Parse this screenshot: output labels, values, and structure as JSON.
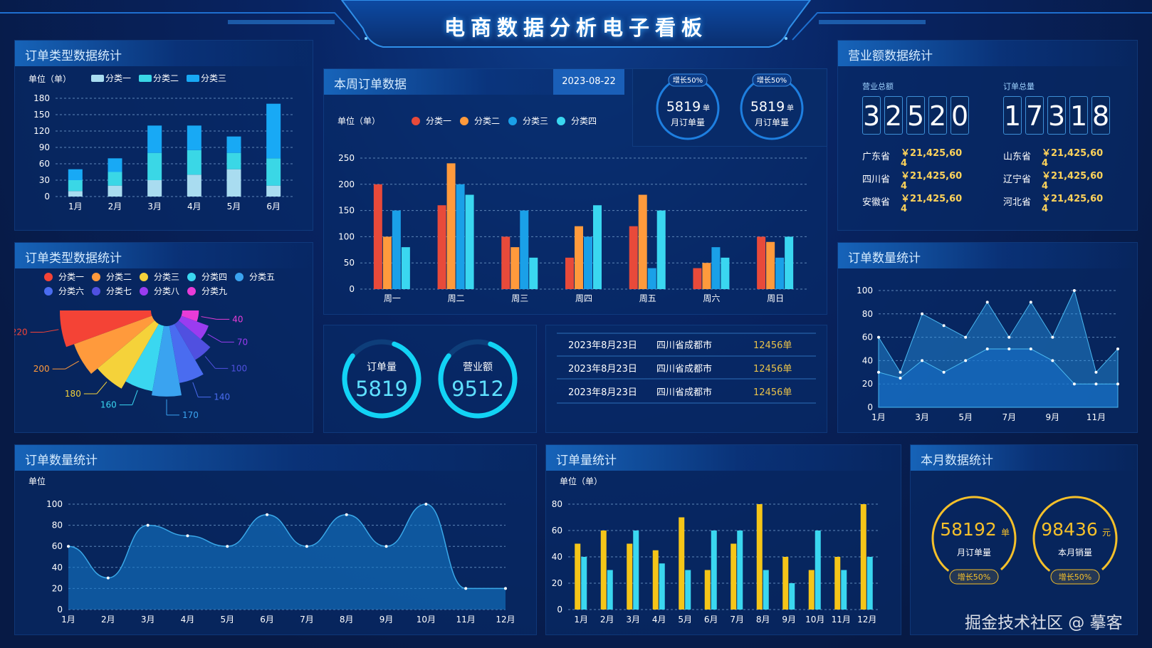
{
  "title": "电商数据分析电子看板",
  "watermark": "掘金技术社区 @ 摹客",
  "panel1": {
    "title": "订单类型数据统计",
    "unit": "单位（单）",
    "legend": [
      "分类一",
      "分类二",
      "分类三"
    ],
    "legend_colors": [
      "#a9dcf0",
      "#3ad7e6",
      "#18a9f5"
    ]
  },
  "panel2": {
    "title": "订单类型数据统计",
    "legend": [
      "分类一",
      "分类二",
      "分类三",
      "分类四",
      "分类五",
      "分类六",
      "分类七",
      "分类八",
      "分类九"
    ],
    "legend_colors": [
      "#f44336",
      "#ff9a3c",
      "#f5d23a",
      "#3ad7f0",
      "#3aa3f0",
      "#4a6cf0",
      "#5050e0",
      "#9a3cf0",
      "#e83cd7"
    ]
  },
  "panel3": {
    "title": "本周订单数据",
    "date": "2023-08-22",
    "unit": "单位（单）",
    "legend": [
      "分类一",
      "分类二",
      "分类三",
      "分类四"
    ],
    "legend_colors": [
      "#e84a3a",
      "#ff9a3c",
      "#1aa0e8",
      "#3ad7f0"
    ]
  },
  "badges": [
    {
      "tag": "增长50%",
      "value": "5819",
      "unit": "单",
      "label": "月订单量"
    },
    {
      "tag": "增长50%",
      "value": "5819",
      "unit": "单",
      "label": "月订单量"
    }
  ],
  "rings": [
    {
      "label": "订单量",
      "value": "5819"
    },
    {
      "label": "营业额",
      "value": "9512"
    }
  ],
  "table_rows": [
    {
      "date": "2023年8月23日",
      "city": "四川省成都市",
      "count": "12456单"
    },
    {
      "date": "2023年8月23日",
      "city": "四川省成都市",
      "count": "12456单"
    },
    {
      "date": "2023年8月23日",
      "city": "四川省成都市",
      "count": "12456单"
    }
  ],
  "revenue": {
    "title": "营业额数据统计",
    "total_label": "营业总额",
    "total_digits": [
      "3",
      "2",
      "5",
      "2",
      "0"
    ],
    "orders_label": "订单总量",
    "orders_digits": [
      "1",
      "7",
      "3",
      "1",
      "8"
    ],
    "provinces": [
      {
        "name": "广东省",
        "amount": "￥21,425,60",
        "sub": "4"
      },
      {
        "name": "山东省",
        "amount": "￥21,425,60",
        "sub": "4"
      },
      {
        "name": "四川省",
        "amount": "￥21,425,60",
        "sub": "4"
      },
      {
        "name": "辽宁省",
        "amount": "￥21,425,60",
        "sub": "4"
      },
      {
        "name": "安徽省",
        "amount": "￥21,425,60",
        "sub": "4"
      },
      {
        "name": "河北省",
        "amount": "￥21,425,60",
        "sub": "4"
      }
    ]
  },
  "panel_right_mid": {
    "title": "订单数量统计"
  },
  "panel_bottom_left": {
    "title": "订单数量统计",
    "unit": "单位"
  },
  "panel_bottom_mid": {
    "title": "订单量统计",
    "unit": "单位（单）"
  },
  "panel_month": {
    "title": "本月数据统计",
    "items": [
      {
        "value": "58192",
        "unit": "单",
        "label": "月订单量",
        "tag": "增长50%"
      },
      {
        "value": "98436",
        "unit": "元",
        "label": "本月销量",
        "tag": "增长50%"
      }
    ]
  },
  "chart_data": [
    {
      "type": "bar",
      "stacked": true,
      "categories": [
        "1月",
        "2月",
        "3月",
        "4月",
        "5月",
        "6月"
      ],
      "series": [
        {
          "name": "分类一",
          "values": [
            10,
            20,
            30,
            40,
            50,
            20
          ],
          "color": "#a9dcf0"
        },
        {
          "name": "分类二",
          "values": [
            20,
            25,
            50,
            45,
            30,
            50
          ],
          "color": "#3ad7e6"
        },
        {
          "name": "分类三",
          "values": [
            20,
            25,
            50,
            45,
            30,
            100
          ],
          "color": "#18a9f5"
        }
      ],
      "ylim": [
        0,
        180
      ],
      "yticks": [
        0,
        30,
        60,
        90,
        120,
        150,
        180
      ]
    },
    {
      "type": "pie",
      "variant": "rose",
      "values": [
        220,
        200,
        180,
        160,
        170,
        140,
        100,
        70,
        40
      ],
      "labels": [
        "220",
        "200",
        "180",
        "160",
        "170",
        "140",
        "100",
        "70",
        "40"
      ],
      "colors": [
        "#f44336",
        "#ff9a3c",
        "#f5d23a",
        "#3ad7f0",
        "#3aa3f0",
        "#4a6cf0",
        "#5050e0",
        "#9a3cf0",
        "#e83cd7"
      ]
    },
    {
      "type": "bar",
      "categories": [
        "周一",
        "周二",
        "周三",
        "周四",
        "周五",
        "周六",
        "周日"
      ],
      "series": [
        {
          "name": "分类一",
          "values": [
            200,
            160,
            100,
            60,
            120,
            40,
            100
          ],
          "color": "#e84a3a"
        },
        {
          "name": "分类二",
          "values": [
            100,
            240,
            80,
            120,
            180,
            50,
            90
          ],
          "color": "#ff9a3c"
        },
        {
          "name": "分类三",
          "values": [
            150,
            200,
            150,
            100,
            40,
            80,
            60
          ],
          "color": "#1aa0e8"
        },
        {
          "name": "分类四",
          "values": [
            80,
            180,
            60,
            160,
            150,
            60,
            100
          ],
          "color": "#3ad7f0"
        }
      ],
      "ylim": [
        0,
        250
      ],
      "yticks": [
        0,
        50,
        100,
        150,
        200,
        250
      ]
    },
    {
      "type": "area",
      "categories": [
        "1月",
        "2月",
        "3月",
        "4月",
        "5月",
        "6月",
        "7月",
        "8月",
        "9月",
        "10月",
        "11月",
        "12月"
      ],
      "xticks": [
        "1月",
        "3月",
        "5月",
        "7月",
        "9月",
        "11月"
      ],
      "series": [
        {
          "values": [
            60,
            30,
            80,
            70,
            60,
            90,
            60,
            90,
            60,
            100,
            30,
            50
          ]
        },
        {
          "values": [
            30,
            25,
            40,
            30,
            40,
            50,
            50,
            50,
            40,
            20,
            20,
            20
          ]
        }
      ],
      "ylim": [
        0,
        100
      ],
      "yticks": [
        0,
        20,
        40,
        60,
        80,
        100
      ]
    },
    {
      "type": "area",
      "smooth": true,
      "categories": [
        "1月",
        "2月",
        "3月",
        "4月",
        "5月",
        "6月",
        "7月",
        "8月",
        "9月",
        "10月",
        "11月",
        "12月"
      ],
      "values": [
        60,
        30,
        80,
        70,
        60,
        90,
        60,
        90,
        60,
        100,
        20,
        20
      ],
      "ylim": [
        0,
        100
      ],
      "yticks": [
        0,
        20,
        40,
        60,
        80,
        100
      ]
    },
    {
      "type": "bar",
      "categories": [
        "1月",
        "2月",
        "3月",
        "4月",
        "5月",
        "6月",
        "7月",
        "8月",
        "9月",
        "10月",
        "11月",
        "12月"
      ],
      "series": [
        {
          "values": [
            50,
            60,
            50,
            45,
            70,
            30,
            50,
            80,
            40,
            30,
            40,
            80
          ],
          "color": "#f5c518"
        },
        {
          "values": [
            40,
            30,
            60,
            35,
            30,
            60,
            60,
            30,
            20,
            60,
            30,
            40
          ],
          "color": "#3ad7f0"
        }
      ],
      "ylim": [
        0,
        80
      ],
      "yticks": [
        0,
        20,
        40,
        60,
        80
      ]
    }
  ]
}
